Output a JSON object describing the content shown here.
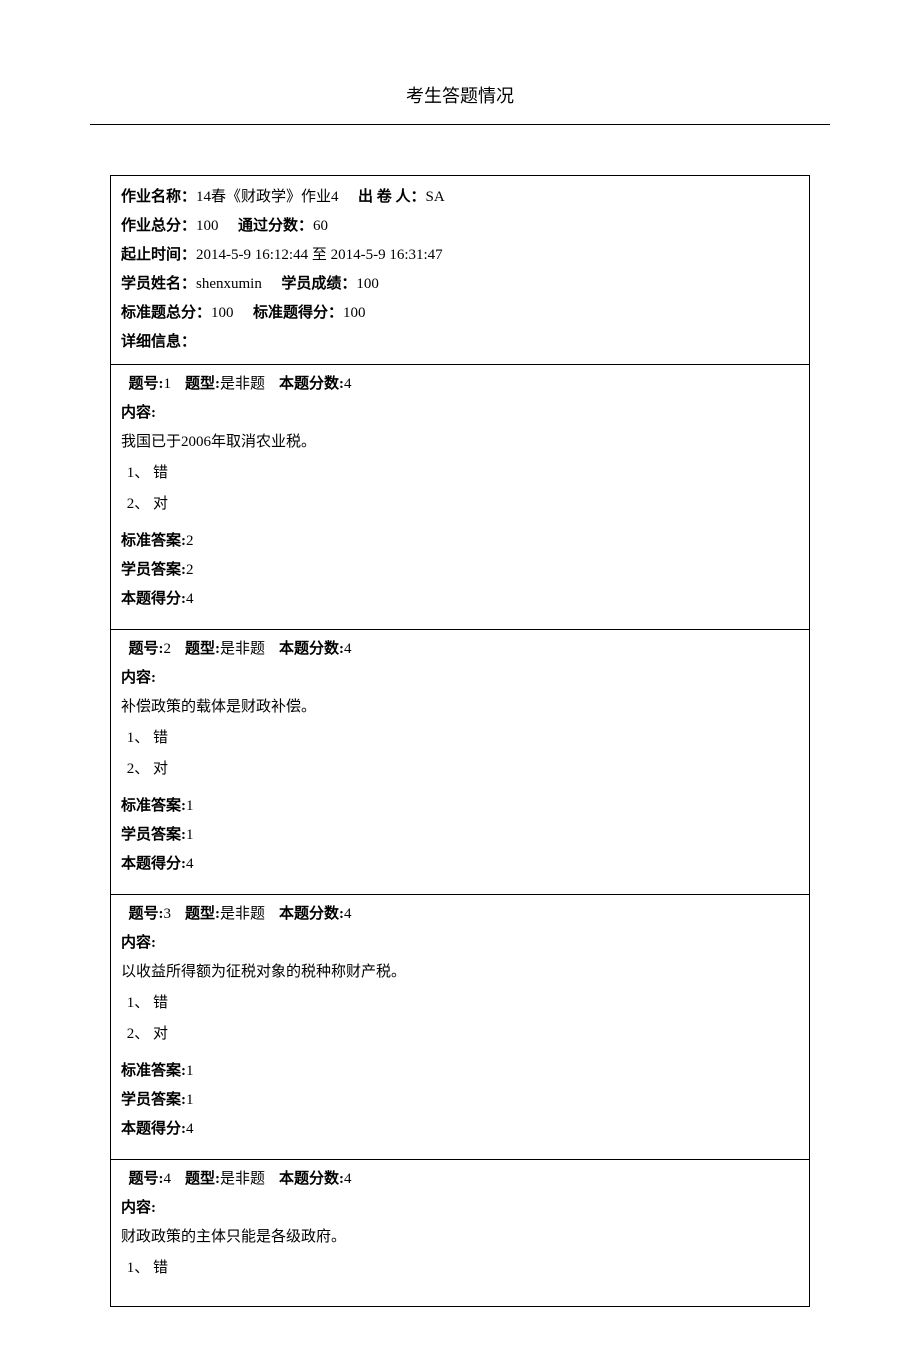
{
  "page": {
    "title": "考生答题情况"
  },
  "header": {
    "labels": {
      "assignment_name": "作业名称：",
      "author": "出 卷 人：",
      "total_score": "作业总分：",
      "pass_score": "通过分数：",
      "time_range": "起止时间：",
      "time_to": " 至 ",
      "student_name": "学员姓名：",
      "student_score": "学员成绩：",
      "std_total": "标准题总分：",
      "std_score": "标准题得分：",
      "details": "详细信息："
    },
    "values": {
      "assignment_name": "14春《财政学》作业4",
      "author": "SA",
      "total_score": "100",
      "pass_score": "60",
      "time_start": "2014-5-9 16:12:44",
      "time_end": "2014-5-9 16:31:47",
      "student_name": "shenxumin",
      "student_score": "100",
      "std_total": "100",
      "std_score": "100"
    }
  },
  "qlabels": {
    "num": "题号:",
    "type": "题型:",
    "points": "本题分数:",
    "content": "内容:",
    "std_answer": "标准答案:",
    "student_answer": "学员答案:",
    "score": "本题得分:"
  },
  "questions": [
    {
      "num": "1",
      "type": "是非题",
      "points": "4",
      "content": "我国已于2006年取消农业税。",
      "opt1": "1、  错",
      "opt2": "2、  对",
      "std_answer": "2",
      "student_answer": "2",
      "score": "4"
    },
    {
      "num": "2",
      "type": "是非题",
      "points": "4",
      "content": "补偿政策的载体是财政补偿。",
      "opt1": "1、  错",
      "opt2": "2、  对",
      "std_answer": "1",
      "student_answer": "1",
      "score": "4"
    },
    {
      "num": "3",
      "type": "是非题",
      "points": "4",
      "content": "以收益所得额为征税对象的税种称财产税。",
      "opt1": "1、  错",
      "opt2": "2、  对",
      "std_answer": "1",
      "student_answer": "1",
      "score": "4"
    },
    {
      "num": "4",
      "type": "是非题",
      "points": "4",
      "content": "财政政策的主体只能是各级政府。",
      "opt1": "1、  错",
      "opt2": "",
      "std_answer": "",
      "student_answer": "",
      "score": ""
    }
  ]
}
